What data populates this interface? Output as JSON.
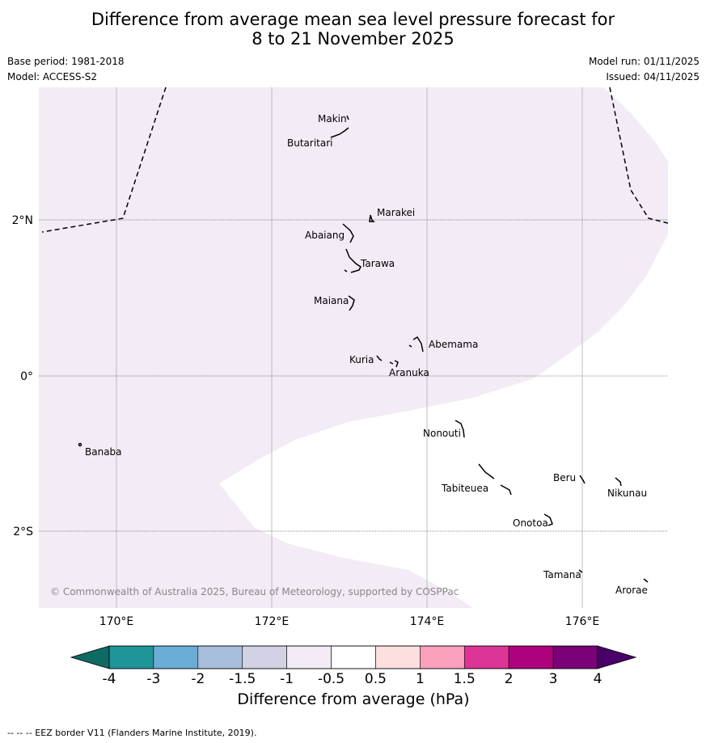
{
  "header": {
    "title_line1": "Difference from average mean sea level pressure forecast for",
    "title_line2": "8 to 21 November 2025",
    "base_period": "Base period: 1981-2018",
    "model": "Model: ACCESS-S2",
    "model_run": "Model run: 01/11/2025",
    "issued": "Issued: 04/11/2025"
  },
  "map": {
    "lat_labels": [
      "2°N",
      "0°",
      "2°S"
    ],
    "lon_labels": [
      "170°E",
      "172°E",
      "174°E",
      "176°E"
    ],
    "islands": [
      "Makin",
      "Butaritari",
      "Marakei",
      "Abaiang",
      "Tarawa",
      "Maiana",
      "Abemama",
      "Kuria",
      "Aranuka",
      "Nonouti",
      "Banaba",
      "Beru",
      "Tabiteuea",
      "Nikunau",
      "Onotoa",
      "Tamana",
      "Arorae"
    ],
    "copyright": "© Commonwealth of Australia 2025, Bureau of Meteorology, supported by COSPPac",
    "shaded_category": "-1 to -0.5",
    "shaded_color": "#f3ebf5"
  },
  "colorbar": {
    "ticks": [
      "-4",
      "-3",
      "-2",
      "-1.5",
      "-1",
      "-0.5",
      "0.5",
      "1",
      "1.5",
      "2",
      "3",
      "4"
    ],
    "colors": [
      "#1f9499",
      "#6aaed6",
      "#a8bedd",
      "#d2d2e5",
      "#f3ebf5",
      "#ffffff",
      "#fde0dd",
      "#f9a0bc",
      "#dc3497",
      "#ae017e",
      "#7a0177"
    ],
    "low_extend_color": "#0d6b63",
    "high_extend_color": "#49006a",
    "label": "Difference from average (hPa)"
  },
  "footer": {
    "eez_note": "--  --  -- EEZ border V11 (Flanders Marine Institute, 2019)."
  }
}
